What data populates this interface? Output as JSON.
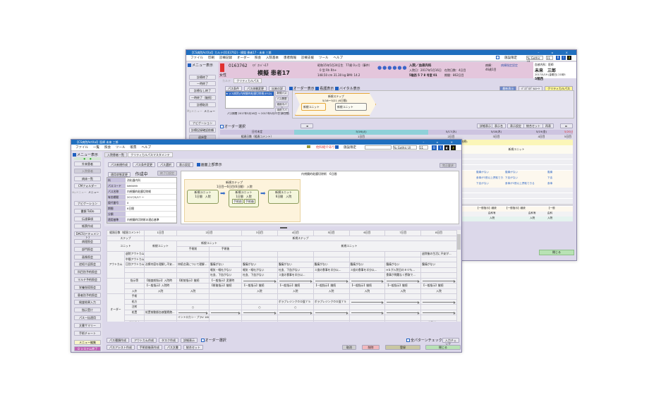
{
  "back": {
    "title": "【CS病院ActXal】カルテ(0163762) - 模擬 患者17 - 未来 三郎",
    "menu": [
      "ファイル",
      "印刷",
      "診療記録",
      "オーダー",
      "照会",
      "入院基本",
      "患者情報",
      "診療支援",
      "ツール",
      "ヘルプ"
    ],
    "toolbar": {
      "facility_limit": "施設限定",
      "font": "Yu Gothic UI",
      "size": "11"
    },
    "sidebar": {
      "menu_show": "メニュー表示",
      "buttons": [
        "診療終了",
        "一時終了",
        "診療なし終了",
        "一時終了（継続）",
        "診療取消"
      ],
      "tabs": [
        "Myメニュー",
        "メニュー"
      ],
      "buttons2": [
        "ナビゲーション",
        "診療記録確認依頼",
        "退床登"
      ]
    },
    "patient": {
      "id": "0163762",
      "kana": "ﾓｷﾞ ｶﾝｼﾞｬ17",
      "name": "模擬 患者17",
      "sex": "女性",
      "birth": "昭和15年5月24日生",
      "age": "77歳 0ヶ月（事件）",
      "blood": "0 型 Rh Rh+",
      "height": "148.50",
      "height_unit": "cm",
      "weight": "31.30",
      "weight_unit": "kg",
      "bmi": "BMI: 14.2",
      "admission": "入院／血液内科",
      "admit_date": "入院日：2017年5月16日",
      "days": "在院日数：4日目",
      "ward": "5階西 5 7 8 号室 01",
      "term": "期間：862日目",
      "note1": "病棟：",
      "note2": "病棟指定設定",
      "note3": "46歳1目",
      "doctor_dept": "血液内科：医師",
      "doctor": "未来　三郎",
      "datetime": "2017/5/19 (金曜日) 21時5",
      "doctor_ward": "5階西"
    },
    "tabs": [
      "カルテ",
      "クリティカルパス"
    ],
    "path_buttons": [
      "パス条件",
      "パス体験変更",
      "出来の詳"
    ],
    "checks": [
      "オーダー表示",
      "看護表示",
      "バイタル表示"
    ],
    "right_buttons": [
      "最新表示",
      "ﾊﾟｽﾌﾟﾛｸﾞﾗﾑｼｰﾄ",
      "クリティカルパス"
    ],
    "path_list": [
      "★ (CS病院)内視鏡的粘膜切除術(ESD)"
    ],
    "path_side": [
      "新規パス",
      "パス履歴",
      "適用中パス",
      "未終了パス"
    ],
    "path_period": "パス期間 2017年5月16日 ～ 2017年5月21日 (6日間)",
    "step": {
      "name": "新規ステップ",
      "range": "5/16～5/21 (6日間)",
      "units": [
        "新規ユニット",
        "新規ユニット"
      ]
    },
    "order_select": "オーダー選択",
    "nav_buttons": [
      "◄",
      "詳細表示",
      "表示名",
      "表示設定",
      "統合セット",
      "再表",
      "►"
    ],
    "grid": {
      "date_label": "日付未定",
      "day_label": "経過日数（経過コメント）",
      "dates": [
        "5/16(火)",
        "5/17(水)",
        "5/18(木)",
        "5/19(金)",
        "5/20(土)"
      ],
      "days": [
        "1日目",
        "2日目",
        "3日目",
        "4日目",
        "5日目"
      ],
      "band": "(治療)",
      "unit": "新規ユニット",
      "outcomes": [
        [
          "腹痛がない",
          "腹痛がない",
          "腹痛"
        ],
        [
          "食事が3割以上摂取できる",
          "下血がない",
          "下血"
        ],
        [
          "下血がない",
          "食事が3割以上摂取できる",
          "食事"
        ]
      ],
      "orders": [
        "【一般指示】継続",
        "【一般指示】継続",
        "【一般"
      ],
      "dept": [
        "由科有",
        "由科有",
        "由科"
      ],
      "inout": [
        "入院",
        "入院",
        "入院"
      ]
    },
    "close": "閉じる"
  },
  "front": {
    "title": "【CS病院ActXal】医師 未来 三郎",
    "menu": [
      "ファイル",
      "一覧",
      "照会",
      "ツール",
      "帳票",
      "ヘルプ"
    ],
    "toolbar": {
      "referral": "他科紹介あり",
      "facility_limit": "施設限定",
      "font": "Yu Gothic UI",
      "size": "11"
    },
    "sidebar": {
      "menu_show": "メニュー表示",
      "buttons": [
        "外来患者",
        "入院患者",
        "病床一覧",
        "CMフォルダー"
      ],
      "tabs": [
        "Myメニュー",
        "メニュー"
      ],
      "buttons2": [
        "ナビゲーション",
        "書類 ToDo",
        "伝達事項",
        "帳票作成",
        "DACS(ドキュメント)",
        "病理照会",
        "部門照会",
        "画像照会",
        "逆紹介返照会",
        "科目別予約照会",
        "マルチ予約照会",
        "栄養指導照会",
        "患者別予約照会",
        "検査結果入力",
        "指示受け",
        "パス一括適用",
        "文書サマリー",
        "手術チャート"
      ],
      "edit": "メニュー編集",
      "exit": "システム終了"
    },
    "tabs": [
      "入院患者一覧",
      "クリティカルパスマスタメンテ"
    ],
    "path_buttons": [
      "パス新規作成",
      "パス条件変更",
      "パス選択",
      "表示設定"
    ],
    "show_top": "画面上部表示",
    "status_button": "適用状態変更",
    "status": "作成中",
    "end_date_button": "終了日設定",
    "info": [
      {
        "k": "科",
        "v": "消化器内科"
      },
      {
        "k": "パスコード",
        "v": "N99099"
      },
      {
        "k": "パス名称",
        "v": "内視鏡的粘膜切除術"
      },
      {
        "k": "有効期間",
        "v": "2017/5/17 ～"
      },
      {
        "k": "版代番号",
        "v": "0"
      },
      {
        "k": "期間",
        "v": "6日間"
      },
      {
        "k": "分類",
        "v": ""
      },
      {
        "k": "適用基準",
        "v": "内視鏡的切除術の適応基準"
      }
    ],
    "diagram": {
      "title": "内視鏡的粘膜切除術　6日間",
      "complete_button": "完正要求",
      "step": "新規ステップ",
      "range": "1日目～6日目(6日間)　入院",
      "units": [
        {
          "name": "新規ユニット",
          "detail": "1日間　入院"
        },
        {
          "name": "新規ユニット",
          "detail": "1日間　入院",
          "subs": [
            "手術前",
            "手術後"
          ]
        },
        {
          "name": "新規ユニット",
          "detail": "6日間　入院"
        }
      ]
    },
    "grid": {
      "corner": "経過日数（経過コメント）",
      "days": [
        "1日目",
        "2日目",
        "3日目",
        "4日目",
        "5日目",
        "6日目",
        "7日目",
        "8日目"
      ],
      "step_label": "ステップ",
      "step": "新規ステップ",
      "unit_label": "ユニット",
      "unit1": "新規ユニット",
      "unit2": "新規ユニット",
      "unit2_subs": [
        "手術前",
        "手術後"
      ],
      "unit3": "新規ユニット",
      "rows": [
        {
          "group": "アウトカム",
          "item": "退院アウトカム",
          "cells": [
            "",
            "",
            "",
            "",
            "",
            "",
            "",
            "",
            "退院後の生活に不安が..."
          ]
        },
        {
          "group": "",
          "item": "中間アウトカム",
          "cells": [
            "",
            "",
            "",
            "",
            "",
            "",
            "",
            "",
            ""
          ]
        },
        {
          "group": "",
          "item": "日別アウトカム",
          "cells": [
            "治療内容を理解し不安...",
            "持続点滴について理解...",
            "腹痛がない",
            "腹痛がない",
            "腹痛がない",
            "腹痛がない",
            "腹痛がない",
            "腹痛がない",
            "腹痛がない"
          ]
        },
        {
          "group": "",
          "item": "",
          "cells": [
            "",
            "",
            "嘔気・嘔吐がない",
            "嘔気・嘔吐がない",
            "吐血、下血がない",
            "３度の食事を半分以...",
            "３度の食事を半分以...",
            "Hｂが入院日の８０％...",
            ""
          ]
        },
        {
          "group": "",
          "item": "",
          "cells": [
            "",
            "",
            "吐血、下血がない",
            "吐血、下血がない",
            "３度の食事を半分以...",
            "",
            "",
            "食事が問題なく摂取で...",
            ""
          ]
        },
        {
          "group": "",
          "item": "指示等",
          "cells": [
            "【検査前指示】入院時",
            "【術前指示】継続",
            "【一般指示】変更時",
            "→",
            "→",
            "→",
            "→",
            "→",
            "→"
          ]
        },
        {
          "group": "イベント",
          "item": "",
          "cells": [
            "【一般指示】入院時",
            "",
            "【術後指示】継続",
            "【一般指示】継続",
            "【一般指示】継続",
            "【一般指示】継続",
            "【一般指示】継続",
            "【一般指示】継続",
            "【一般指示】継続"
          ]
        },
        {
          "group": "",
          "item": "入外",
          "cells": [
            "入院",
            "入院",
            "",
            "入院",
            "入院",
            "入院",
            "入院",
            "入院",
            "入院"
          ]
        },
        {
          "group": "オーダー",
          "item": "手術",
          "cells": [
            "",
            "",
            "",
            "",
            "",
            "",
            "",
            "",
            ""
          ]
        },
        {
          "group": "",
          "item": "処方",
          "cells": [
            "",
            "",
            "",
            "",
            "ボラプレジンクＯＤ錠７５",
            "ボラプレジンクＯＤ錠７５",
            "→",
            "→",
            "→"
          ]
        },
        {
          "group": "",
          "item": "注射",
          "cells": [
            "",
            "○",
            "",
            "○",
            "○",
            "",
            "",
            "",
            ""
          ]
        },
        {
          "group": "",
          "item": "処置",
          "cells": [
            "処置前動脈血液酸素飽...",
            "→",
            "→",
            "→",
            "→",
            "→",
            "→",
            "→",
            "→"
          ]
        },
        {
          "group": "",
          "item": "",
          "cells": [
            "",
            "イントロカン・プラV 18G-24G",
            "",
            "",
            "",
            "",
            "",
            "",
            ""
          ]
        },
        {
          "group": "",
          "item": "検体検査",
          "cells": [
            "",
            "",
            "",
            "EDTA-2K(2ml)",
            "",
            "",
            "",
            "",
            "9ml(分離剤入)"
          ]
        }
      ]
    },
    "bottom": {
      "row1": [
        "パス種類作成",
        "アウトカム作成",
        "タスク作成",
        "詳細表示"
      ],
      "order_select": "オーダー選択",
      "row2": [
        "パスアシスト作成",
        "手術前後表作成",
        "パス文書",
        "統合セット"
      ],
      "all_check": "全パターンチェックを行う",
      "input_check": "入力チェック",
      "cancel": "取消",
      "delete": "削除",
      "register": "登録",
      "close": "閉じる"
    }
  },
  "colors": {
    "title": "#1f6fbf",
    "header_pink": "#e4c6dc",
    "window_bg": "#dcd8ea",
    "grid_header": "#cdc4e0",
    "step": "#fdf3dc",
    "unit": "#f0f3d8",
    "close": "#b8e2b4",
    "delete": "#f2b8bd",
    "register": "#c9c7a3"
  }
}
